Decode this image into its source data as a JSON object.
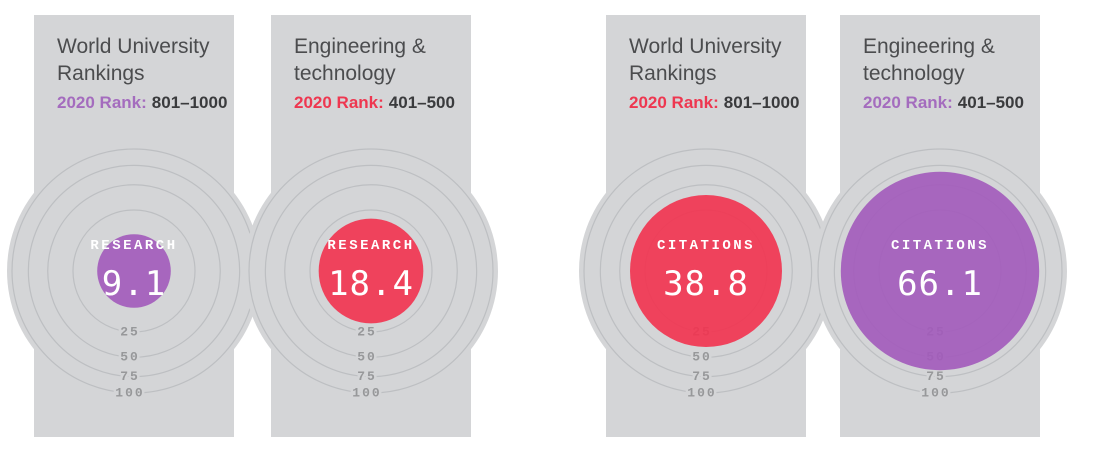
{
  "colors": {
    "background": "#ffffff",
    "card": "#d4d5d7",
    "ring": "#bdbfc2",
    "ring_label": "#97989a",
    "title": "#4b4c4e",
    "rank_value": "#3a3b3d",
    "value_text": "#ffffff",
    "purple": "#a25abb",
    "red": "#f2324f"
  },
  "chart_data": [
    {
      "type": "bullseye",
      "title": "World University Rankings",
      "rank_prefix": "2020 Rank:",
      "rank_range": "801–1000",
      "metric": "RESEARCH",
      "value": 9.1,
      "value_display": "9.1",
      "accent_color": "#a46cbe",
      "circle_color": "#a25abb",
      "scale_ticks": [
        25,
        50,
        75,
        100
      ],
      "scale_max": 100
    },
    {
      "type": "bullseye",
      "title": "Engineering & technology",
      "rank_prefix": "2020 Rank:",
      "rank_range": "401–500",
      "metric": "RESEARCH",
      "value": 18.4,
      "value_display": "18.4",
      "accent_color": "#ee3750",
      "circle_color": "#f2324f",
      "scale_ticks": [
        25,
        50,
        75,
        100
      ],
      "scale_max": 100
    },
    {
      "type": "bullseye",
      "title": "World University Rankings",
      "rank_prefix": "2020 Rank:",
      "rank_range": "801–1000",
      "metric": "CITATIONS",
      "value": 38.8,
      "value_display": "38.8",
      "accent_color": "#ee3750",
      "circle_color": "#f2324f",
      "scale_ticks": [
        25,
        50,
        75,
        100
      ],
      "scale_max": 100
    },
    {
      "type": "bullseye",
      "title": "Engineering & technology",
      "rank_prefix": "2020 Rank:",
      "rank_range": "401–500",
      "metric": "CITATIONS",
      "value": 66.1,
      "value_display": "66.1",
      "accent_color": "#a46cbe",
      "circle_color": "#a25abb",
      "scale_ticks": [
        25,
        50,
        75,
        100
      ],
      "scale_max": 100
    }
  ]
}
